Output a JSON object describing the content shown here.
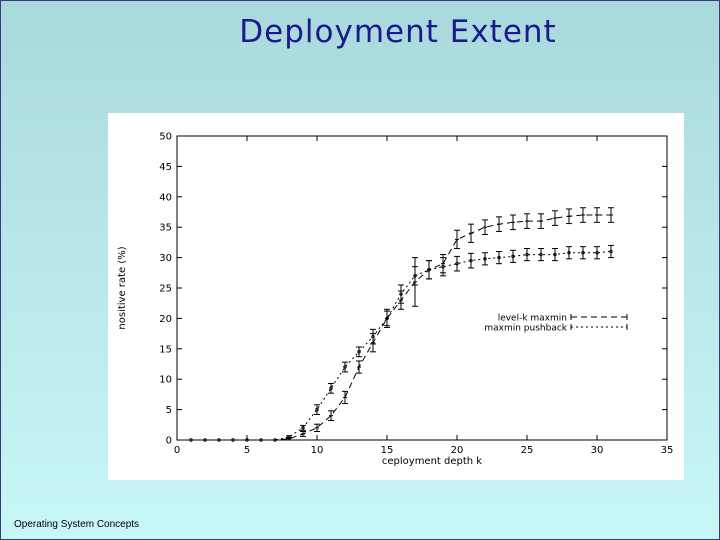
{
  "slide": {
    "title": "Deployment Extent",
    "footer": "Operating System Concepts"
  },
  "chart_data": {
    "type": "line",
    "title": "",
    "xlabel": "ceployment depth k",
    "ylabel": "nositive rate (%)",
    "xlim": [
      0,
      35
    ],
    "ylim": [
      0,
      50
    ],
    "xticks": [
      0,
      5,
      10,
      15,
      20,
      25,
      30,
      35
    ],
    "yticks": [
      0,
      5,
      10,
      15,
      20,
      25,
      30,
      35,
      40,
      45,
      50
    ],
    "grid": false,
    "legend_position": "center-right",
    "series": [
      {
        "name": "level-k maxmin",
        "style": "dashed",
        "color": "#000000",
        "x": [
          1,
          2,
          3,
          4,
          5,
          6,
          7,
          8,
          9,
          10,
          11,
          12,
          13,
          14,
          15,
          16,
          17,
          18,
          19,
          20,
          21,
          22,
          23,
          24,
          25,
          26,
          27,
          28,
          29,
          30,
          31
        ],
        "y": [
          0,
          0,
          0,
          0,
          0,
          0,
          0,
          0.2,
          1,
          2,
          4,
          7,
          12,
          16,
          20,
          23,
          26,
          28,
          29,
          33,
          34,
          35,
          35.5,
          35.8,
          36,
          36,
          36.5,
          36.8,
          37,
          37,
          37
        ],
        "err": [
          0,
          0,
          0,
          0,
          0,
          0,
          0,
          0.2,
          0.4,
          0.6,
          0.8,
          1,
          1,
          1.5,
          1.5,
          1.5,
          4,
          1.5,
          1.5,
          1.5,
          1.5,
          1.2,
          1.2,
          1.2,
          1.2,
          1.2,
          1.2,
          1.2,
          1.2,
          1.2,
          1.2
        ]
      },
      {
        "name": "maxmin pushback",
        "style": "dotted",
        "color": "#000000",
        "x": [
          1,
          2,
          3,
          4,
          5,
          6,
          7,
          8,
          9,
          10,
          11,
          12,
          13,
          14,
          15,
          16,
          17,
          18,
          19,
          20,
          21,
          22,
          23,
          24,
          25,
          26,
          27,
          28,
          29,
          30,
          31
        ],
        "y": [
          0,
          0,
          0,
          0,
          0,
          0,
          0,
          0.5,
          2,
          5,
          8.5,
          12,
          14.5,
          17,
          20,
          24,
          27,
          28,
          28.5,
          29,
          29.5,
          29.8,
          30,
          30.2,
          30.5,
          30.5,
          30.5,
          30.8,
          30.8,
          30.8,
          31
        ],
        "err": [
          0,
          0,
          0,
          0,
          0,
          0,
          0,
          0.2,
          0.4,
          0.8,
          0.8,
          0.8,
          0.8,
          1.2,
          1.2,
          1.5,
          1.5,
          1.5,
          1.5,
          1.2,
          1.2,
          1,
          1,
          1,
          1,
          1,
          1,
          1,
          1,
          1,
          1
        ]
      }
    ]
  }
}
